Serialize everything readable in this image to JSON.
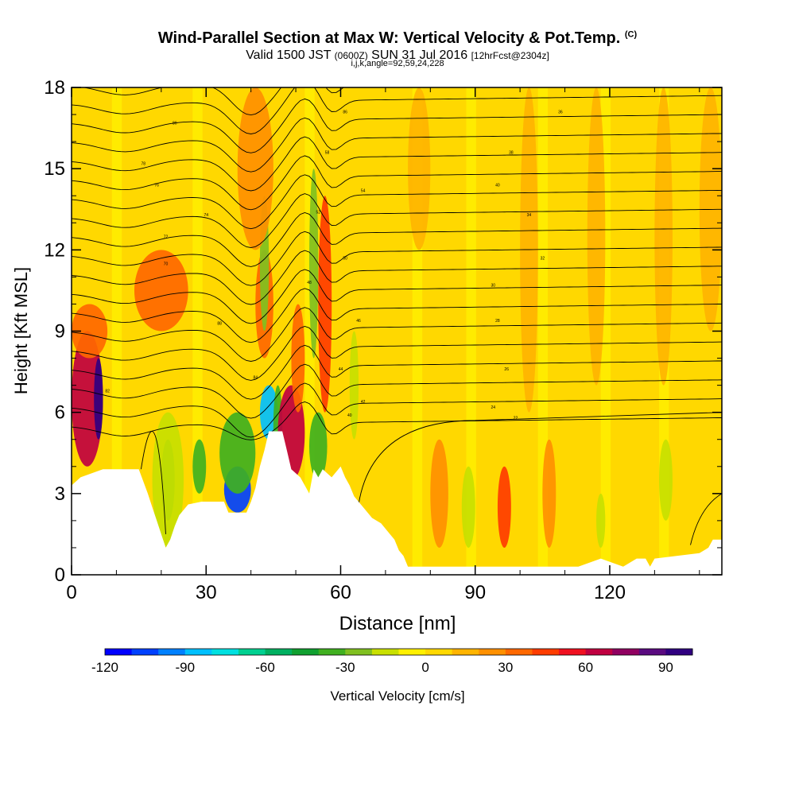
{
  "chart_data": {
    "type": "heatmap",
    "title": "Wind-Parallel Section at Max W: Vertical Velocity & Pot.Temp.",
    "title_mark": "(C)",
    "subtitle_main": "Valid 1500 JST",
    "subtitle_utc": "(0600Z)",
    "subtitle_date": "SUN 31 Jul 2016",
    "subtitle_fcst": "[12hrFcst@2304z]",
    "subtitle2": "i,j,k,angle=92,59,24,228",
    "xlabel": "Distance [nm]",
    "ylabel": "Height [Kft MSL]",
    "xlim": [
      0,
      145
    ],
    "ylim": [
      0,
      18
    ],
    "x_ticks": [
      0,
      30,
      60,
      90,
      120
    ],
    "x_tick_labels": [
      "0",
      "30",
      "60",
      "90",
      "120"
    ],
    "y_ticks": [
      0,
      3,
      6,
      9,
      12,
      15,
      18
    ],
    "y_tick_labels": [
      "0",
      "3",
      "6",
      "9",
      "12",
      "15",
      "18"
    ],
    "colorbar": {
      "label": "Vertical Velocity [cm/s]",
      "min": -120,
      "max": 100,
      "step": 10,
      "tick_values": [
        -120,
        -90,
        -60,
        -30,
        0,
        30,
        60,
        90
      ],
      "tick_labels": [
        "-120",
        "-90",
        "-60",
        "-30",
        "0",
        "30",
        "60",
        "90"
      ],
      "colors": [
        "#0000ff",
        "#0040ff",
        "#0080ff",
        "#00c0ff",
        "#00e0e0",
        "#00d090",
        "#00b060",
        "#10a030",
        "#40b020",
        "#80c020",
        "#c8e000",
        "#fff000",
        "#ffd800",
        "#ffb400",
        "#ff9000",
        "#ff6800",
        "#ff3c00",
        "#f01020",
        "#c00040",
        "#900060",
        "#5a0a80",
        "#300080"
      ]
    },
    "terrain": [
      [
        0,
        3.3
      ],
      [
        2,
        3.6
      ],
      [
        7,
        3.9
      ],
      [
        15,
        3.9
      ],
      [
        17,
        3.0
      ],
      [
        18,
        2.5
      ],
      [
        19,
        2.0
      ],
      [
        20,
        1.5
      ],
      [
        21,
        1.0
      ],
      [
        22,
        1.3
      ],
      [
        23,
        1.8
      ],
      [
        24,
        2.2
      ],
      [
        26,
        2.6
      ],
      [
        29,
        2.7
      ],
      [
        34,
        2.7
      ],
      [
        35,
        2.3
      ],
      [
        39,
        2.3
      ],
      [
        40,
        2.7
      ],
      [
        41,
        3.2
      ],
      [
        42,
        4.0
      ],
      [
        43,
        4.6
      ],
      [
        44,
        5.3
      ],
      [
        47,
        5.3
      ],
      [
        48,
        4.6
      ],
      [
        49,
        3.9
      ],
      [
        51,
        3.6
      ],
      [
        52,
        3.3
      ],
      [
        53,
        3.0
      ],
      [
        54,
        3.9
      ],
      [
        55,
        3.6
      ],
      [
        56,
        3.9
      ],
      [
        58,
        3.6
      ],
      [
        60,
        4.0
      ],
      [
        61,
        3.6
      ],
      [
        62,
        3.3
      ],
      [
        63,
        2.9
      ],
      [
        65,
        2.5
      ],
      [
        67,
        2.1
      ],
      [
        69,
        1.9
      ],
      [
        71,
        1.5
      ],
      [
        72,
        1.3
      ],
      [
        73,
        0.9
      ],
      [
        74,
        0.7
      ],
      [
        75,
        0.3
      ],
      [
        113,
        0.3
      ],
      [
        118,
        0.6
      ],
      [
        123,
        0.3
      ],
      [
        126,
        0.6
      ],
      [
        128,
        0.6
      ],
      [
        129,
        0.3
      ],
      [
        130,
        0.6
      ],
      [
        140,
        0.8
      ],
      [
        142,
        1.0
      ],
      [
        143,
        1.3
      ],
      [
        145,
        1.3
      ]
    ],
    "vertical_velocity_cells": [
      {
        "x": [
          0,
          7
        ],
        "y": [
          4,
          9
        ],
        "w": 60
      },
      {
        "x": [
          5,
          7
        ],
        "y": [
          5,
          8
        ],
        "w": 90
      },
      {
        "x": [
          0,
          8
        ],
        "y": [
          8,
          10
        ],
        "w": 30
      },
      {
        "x": [
          14,
          26
        ],
        "y": [
          9,
          12
        ],
        "w": 30
      },
      {
        "x": [
          20,
          23
        ],
        "y": [
          2,
          5
        ],
        "w": -40
      },
      {
        "x": [
          18,
          25
        ],
        "y": [
          1,
          6
        ],
        "w": -20
      },
      {
        "x": [
          27,
          30
        ],
        "y": [
          3,
          5
        ],
        "w": -40
      },
      {
        "x": [
          34,
          40
        ],
        "y": [
          2.3,
          4
        ],
        "w": -110
      },
      {
        "x": [
          33,
          41
        ],
        "y": [
          3,
          6
        ],
        "w": -40
      },
      {
        "x": [
          42,
          46
        ],
        "y": [
          5,
          7
        ],
        "w": -90
      },
      {
        "x": [
          45,
          47
        ],
        "y": [
          4,
          7
        ],
        "w": -40
      },
      {
        "x": [
          46,
          52
        ],
        "y": [
          3.5,
          7
        ],
        "w": 60
      },
      {
        "x": [
          49,
          52
        ],
        "y": [
          6,
          10
        ],
        "w": 30
      },
      {
        "x": [
          41,
          45
        ],
        "y": [
          8,
          12
        ],
        "w": 30
      },
      {
        "x": [
          53,
          57
        ],
        "y": [
          3.5,
          6
        ],
        "w": -40
      },
      {
        "x": [
          55,
          58
        ],
        "y": [
          6,
          14
        ],
        "w": 40
      },
      {
        "x": [
          53,
          55
        ],
        "y": [
          8,
          15
        ],
        "w": -30
      },
      {
        "x": [
          42,
          44
        ],
        "y": [
          9,
          14
        ],
        "w": -30
      },
      {
        "x": [
          37,
          45
        ],
        "y": [
          12,
          18
        ],
        "w": 20
      },
      {
        "x": [
          95,
          98
        ],
        "y": [
          1,
          4
        ],
        "w": 40
      },
      {
        "x": [
          80,
          84
        ],
        "y": [
          1,
          5
        ],
        "w": 20
      },
      {
        "x": [
          105,
          108
        ],
        "y": [
          1,
          5
        ],
        "w": 20
      },
      {
        "x": [
          131,
          134
        ],
        "y": [
          2,
          5
        ],
        "w": -20
      },
      {
        "x": [
          87,
          90
        ],
        "y": [
          1,
          4
        ],
        "w": -20
      },
      {
        "x": [
          117,
          119
        ],
        "y": [
          1,
          3
        ],
        "w": -20
      },
      {
        "x": [
          62,
          64
        ],
        "y": [
          5,
          9
        ],
        "w": -20
      },
      {
        "x": [
          100,
          104
        ],
        "y": [
          6,
          18
        ],
        "w": 10
      },
      {
        "x": [
          115,
          119
        ],
        "y": [
          7,
          18
        ],
        "w": 10
      },
      {
        "x": [
          130,
          134
        ],
        "y": [
          7,
          18
        ],
        "w": 10
      },
      {
        "x": [
          140,
          145
        ],
        "y": [
          9,
          18
        ],
        "w": 10
      },
      {
        "x": [
          75,
          80
        ],
        "y": [
          12,
          18
        ],
        "w": 10
      }
    ],
    "pot_temp_contour_labels": [
      {
        "x": 23,
        "y": 16.7,
        "label": "80"
      },
      {
        "x": 16,
        "y": 15.2,
        "label": "78"
      },
      {
        "x": 19,
        "y": 14.4,
        "label": "76"
      },
      {
        "x": 30,
        "y": 13.3,
        "label": "74"
      },
      {
        "x": 21,
        "y": 12.5,
        "label": "72"
      },
      {
        "x": 21,
        "y": 11.5,
        "label": "70"
      },
      {
        "x": 33,
        "y": 9.3,
        "label": "88"
      },
      {
        "x": 8,
        "y": 6.8,
        "label": "82"
      },
      {
        "x": 41,
        "y": 7.3,
        "label": "84"
      },
      {
        "x": 61,
        "y": 17.1,
        "label": "86"
      },
      {
        "x": 57,
        "y": 15.6,
        "label": "58"
      },
      {
        "x": 65,
        "y": 14.2,
        "label": "54"
      },
      {
        "x": 55,
        "y": 13.4,
        "label": "52"
      },
      {
        "x": 61,
        "y": 11.7,
        "label": "50"
      },
      {
        "x": 53,
        "y": 10.8,
        "label": "48"
      },
      {
        "x": 64,
        "y": 9.4,
        "label": "46"
      },
      {
        "x": 60,
        "y": 7.6,
        "label": "44"
      },
      {
        "x": 65,
        "y": 6.4,
        "label": "42"
      },
      {
        "x": 62,
        "y": 5.9,
        "label": "40"
      },
      {
        "x": 109,
        "y": 17.1,
        "label": "36"
      },
      {
        "x": 98,
        "y": 15.6,
        "label": "38"
      },
      {
        "x": 95,
        "y": 14.4,
        "label": "40"
      },
      {
        "x": 102,
        "y": 13.3,
        "label": "34"
      },
      {
        "x": 105,
        "y": 11.7,
        "label": "32"
      },
      {
        "x": 94,
        "y": 10.7,
        "label": "30"
      },
      {
        "x": 95,
        "y": 9.4,
        "label": "28"
      },
      {
        "x": 97,
        "y": 7.6,
        "label": "26"
      },
      {
        "x": 94,
        "y": 6.2,
        "label": "24"
      },
      {
        "x": 99,
        "y": 5.8,
        "label": "22"
      }
    ]
  }
}
